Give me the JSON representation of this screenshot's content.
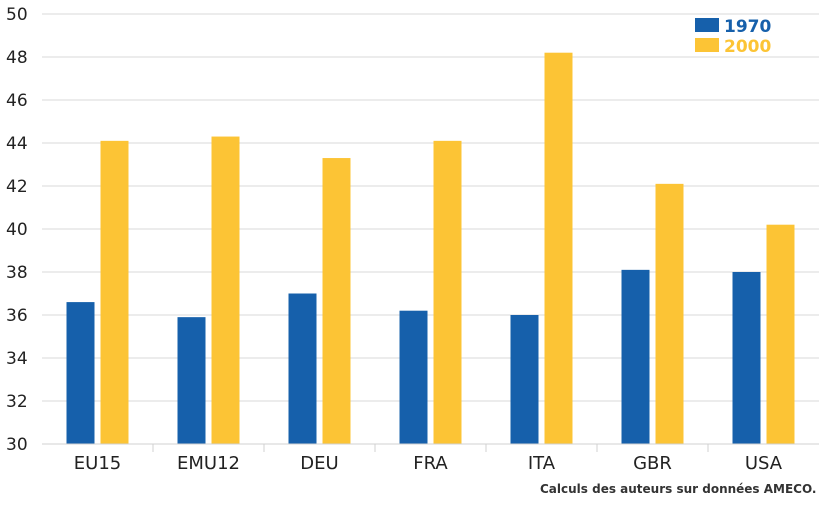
{
  "chart_data": {
    "type": "bar",
    "categories": [
      "EU15",
      "EMU12",
      "DEU",
      "FRA",
      "ITA",
      "GBR",
      "USA"
    ],
    "series": [
      {
        "name": "1970",
        "color": "#1660ab",
        "values": [
          36.6,
          35.9,
          37.0,
          36.2,
          36.0,
          38.1,
          38.0
        ]
      },
      {
        "name": "2000",
        "color": "#fcc435",
        "values": [
          44.1,
          44.3,
          43.3,
          44.1,
          48.2,
          42.1,
          40.2
        ]
      }
    ],
    "yticks": [
      30,
      32,
      34,
      36,
      38,
      40,
      42,
      44,
      46,
      48,
      50
    ],
    "ylim": [
      30,
      50
    ],
    "grid": true,
    "legend_position": "top-right",
    "note": "Calculs des auteurs sur données AMECO."
  }
}
